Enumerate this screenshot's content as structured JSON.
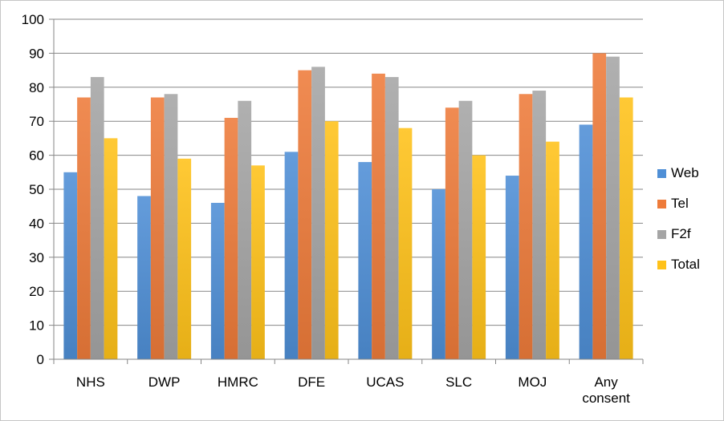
{
  "chart_data": {
    "type": "bar",
    "title": "",
    "xlabel": "",
    "ylabel": "",
    "ylim": [
      0,
      100
    ],
    "yticks": [
      0,
      10,
      20,
      30,
      40,
      50,
      60,
      70,
      80,
      90,
      100
    ],
    "grid": true,
    "legend_position": "right",
    "categories": [
      "NHS",
      "DWP",
      "HMRC",
      "DFE",
      "UCAS",
      "SLC",
      "MOJ",
      "Any consent"
    ],
    "series": [
      {
        "name": "Web",
        "color": "#4f8fd6",
        "values": [
          55,
          48,
          46,
          61,
          58,
          50,
          54,
          69
        ]
      },
      {
        "name": "Tel",
        "color": "#ee7b3a",
        "values": [
          77,
          77,
          71,
          85,
          84,
          74,
          78,
          90
        ]
      },
      {
        "name": "F2f",
        "color": "#a5a5a5",
        "values": [
          83,
          78,
          76,
          86,
          83,
          76,
          79,
          89
        ]
      },
      {
        "name": "Total",
        "color": "#ffc21a",
        "values": [
          65,
          59,
          57,
          70,
          68,
          60,
          64,
          77
        ]
      }
    ]
  }
}
